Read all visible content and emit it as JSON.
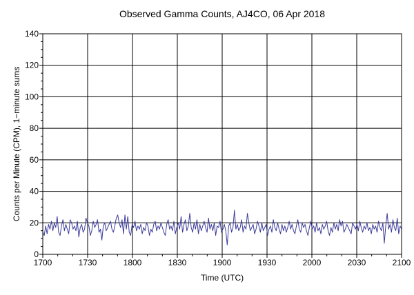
{
  "chart_data": {
    "type": "line",
    "title": "Observed Gamma Counts, AJ4CO, 06 Apr 2018",
    "xlabel": "Time (UTC)",
    "ylabel": "Counts per Minute (CPM), 1−minute sums",
    "x_ticks": [
      "1700",
      "1730",
      "1800",
      "1830",
      "1900",
      "1930",
      "2000",
      "2030",
      "2100"
    ],
    "y_ticks": [
      "0",
      "20",
      "40",
      "60",
      "80",
      "100",
      "120",
      "140"
    ],
    "xlim_minutes": [
      0,
      240
    ],
    "ylim": [
      0,
      140
    ],
    "grid": true,
    "line_color": "#3a3a9a",
    "series": [
      {
        "values": [
          14,
          12,
          18,
          13,
          19,
          16,
          21,
          15,
          20,
          17,
          24,
          14,
          12,
          18,
          22,
          15,
          19,
          16,
          13,
          22,
          20,
          16,
          18,
          15,
          21,
          11,
          17,
          19,
          14,
          16,
          23,
          20,
          18,
          12,
          15,
          21,
          17,
          19,
          22,
          14,
          16,
          9,
          18,
          20,
          15,
          17,
          19,
          21,
          16,
          14,
          18,
          23,
          25,
          20,
          17,
          22,
          13,
          25,
          16,
          24,
          14,
          12,
          19,
          17,
          21,
          15,
          18,
          16,
          19,
          13,
          17,
          15,
          20,
          18,
          12,
          16,
          14,
          19,
          21,
          15,
          18,
          16,
          20,
          17,
          14,
          12,
          19,
          22,
          16,
          18,
          15,
          21,
          13,
          17,
          20,
          16,
          24,
          14,
          19,
          22,
          15,
          18,
          26,
          17,
          14,
          20,
          16,
          22,
          13,
          19,
          15,
          18,
          21,
          17,
          14,
          23,
          16,
          19,
          15,
          20,
          12,
          18,
          17,
          21,
          14,
          16,
          19,
          15,
          6,
          18,
          20,
          14,
          17,
          28,
          16,
          19,
          15,
          17,
          22,
          14,
          18,
          16,
          26,
          20,
          15,
          17,
          19,
          13,
          16,
          21,
          18,
          14,
          20,
          15,
          17,
          19,
          12,
          16,
          18,
          14,
          22,
          17,
          15,
          20,
          16,
          13,
          19,
          15,
          18,
          14,
          17,
          21,
          16,
          19,
          15,
          13,
          18,
          22,
          16,
          14,
          20,
          17,
          19,
          15,
          12,
          17,
          21,
          16,
          18,
          14,
          20,
          15,
          17,
          13,
          19,
          16,
          18,
          21,
          15,
          12,
          17,
          14,
          20,
          16,
          19,
          15,
          22,
          18,
          21,
          14,
          16,
          19,
          17,
          15,
          13,
          20,
          18,
          16,
          19,
          15,
          21,
          17,
          14,
          18,
          16,
          20,
          15,
          17,
          13,
          19,
          16,
          18,
          14,
          21,
          17,
          15,
          20,
          7,
          18,
          26,
          16,
          19,
          14,
          22,
          17,
          15,
          23,
          13,
          18,
          16
        ]
      }
    ]
  }
}
